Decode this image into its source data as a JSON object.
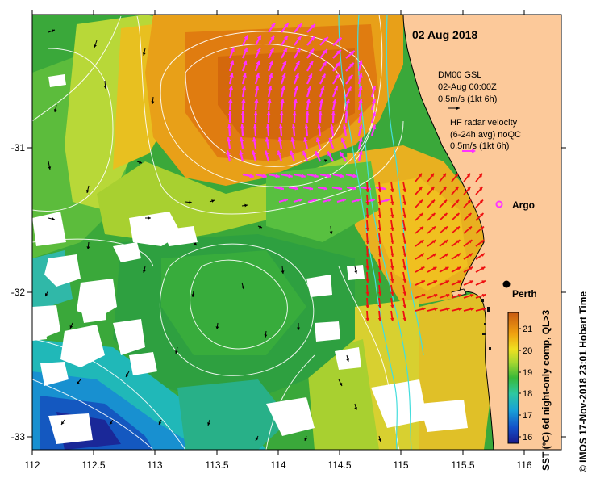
{
  "map": {
    "date_label": "02 Aug 2018",
    "model_label": "DM00 GSL",
    "model_time": "02-Aug 00:00Z",
    "model_scale": "0.5m/s (1kt 6h)",
    "hf_title_1": "HF radar velocity",
    "hf_title_2": "(6-24h avg) noQC",
    "hf_scale": "0.5m/s (1kt 6h)",
    "argo_label": "Argo",
    "city_label": "Perth",
    "credit": "© IMOS 17-Nov-2018 23:01 Hobart Time",
    "colorbar_title": "SST (°C) 6d night-only comp, QL>3",
    "colorbar_ticks": [
      "21",
      "20",
      "19",
      "18",
      "17",
      "16"
    ],
    "x_ticks": [
      "112",
      "112.5",
      "113",
      "113.5",
      "114",
      "114.5",
      "115",
      "115.5",
      "116"
    ],
    "y_ticks": [
      "-31",
      "-32",
      "-33"
    ],
    "colors": {
      "land": "#fcc99a",
      "hf_vectors": "#ff33ff",
      "model_vectors_nearshore": "#ee1111",
      "model_vectors_offshore": "#000000",
      "contours": "#ffffff",
      "isobaths": "#44dddd"
    }
  }
}
